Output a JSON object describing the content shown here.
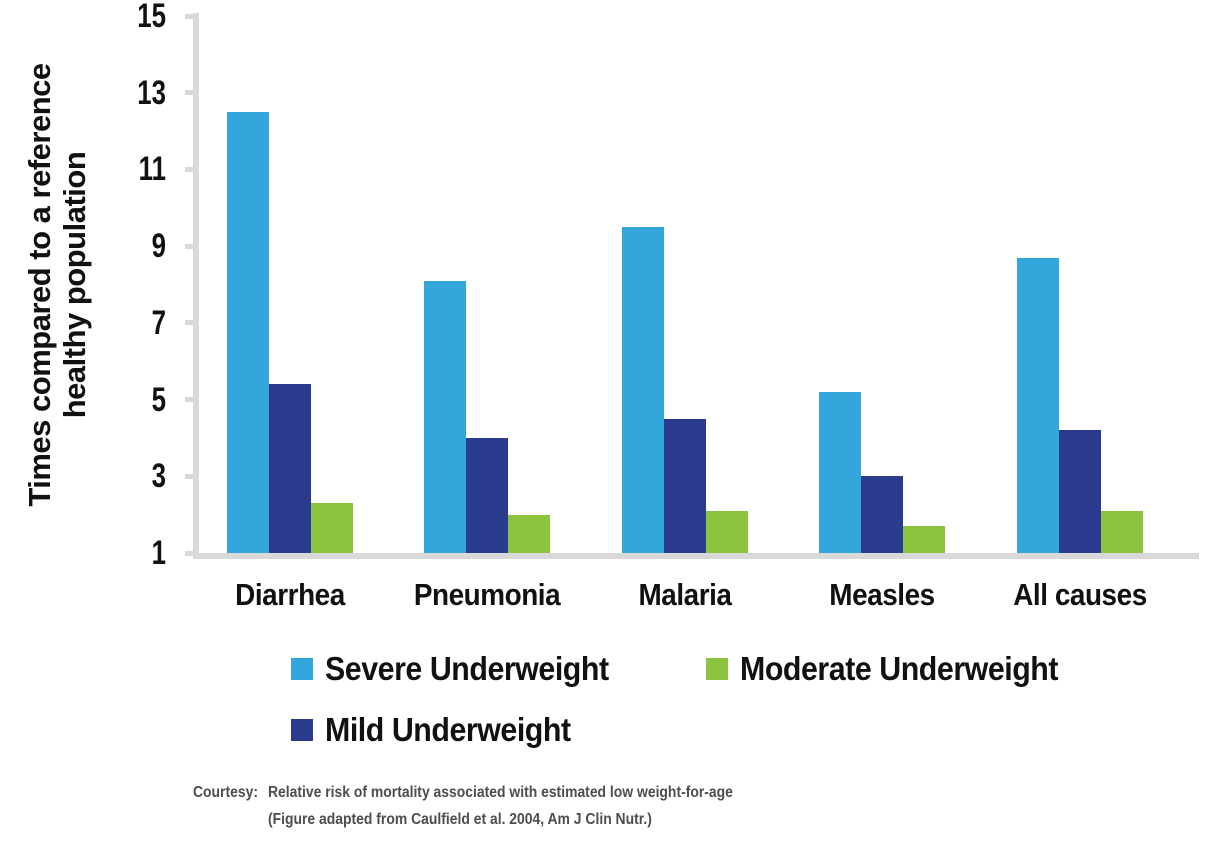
{
  "chart_data": {
    "type": "bar",
    "title": "",
    "categories": [
      "Diarrhea",
      "Pneumonia",
      "Malaria",
      "Measles",
      "All causes"
    ],
    "series": [
      {
        "name": "Severe Underweight",
        "color": "#33A7DB",
        "values": [
          12.5,
          8.1,
          9.5,
          5.2,
          8.7
        ]
      },
      {
        "name": "Mild Underweight",
        "color": "#2B3B8E",
        "values": [
          5.4,
          4.0,
          4.5,
          3.0,
          4.2
        ]
      },
      {
        "name": "Moderate Underweight",
        "color": "#8CC43F",
        "values": [
          2.3,
          2.0,
          2.1,
          1.7,
          2.1
        ]
      }
    ],
    "ylabel_line1": "Times compared to a reference",
    "ylabel_line2": "healthy population",
    "y_ticks": [
      15,
      13,
      11,
      9,
      7,
      5,
      3,
      1
    ],
    "ylim": [
      1,
      15
    ],
    "grid": false,
    "legend_position": "below-plot",
    "bar_order_note": "bars left-to-right in each group: Severe, Mild, Moderate"
  },
  "legend": {
    "items": [
      {
        "label": "Severe Underweight",
        "color": "#33A7DB"
      },
      {
        "label": "Moderate Underweight",
        "color": "#8CC43F"
      },
      {
        "label": "Mild Underweight",
        "color": "#2B3B8E"
      }
    ]
  },
  "courtesy": {
    "prefix": "Courtesy:",
    "line1": "Relative risk of mortality associated with estimated low weight-for-age",
    "line2": "(Figure adapted from Caulfield et al. 2004, Am J Clin Nutr.)"
  },
  "colors": {
    "axis": "#D9D9D9",
    "text": "#111111",
    "courtesy_text": "#4D4D4D",
    "background": "#FFFFFF"
  }
}
